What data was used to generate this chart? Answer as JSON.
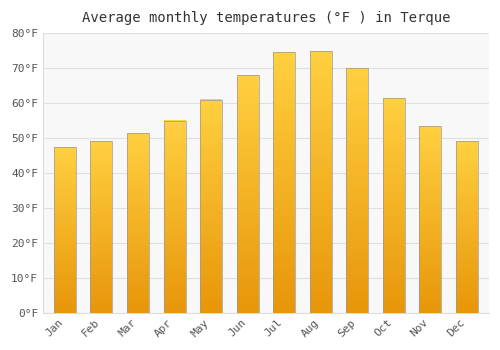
{
  "title": "Average monthly temperatures (°F ) in Terque",
  "months": [
    "Jan",
    "Feb",
    "Mar",
    "Apr",
    "May",
    "Jun",
    "Jul",
    "Aug",
    "Sep",
    "Oct",
    "Nov",
    "Dec"
  ],
  "values": [
    47.5,
    49.0,
    51.5,
    55.0,
    61.0,
    68.0,
    74.5,
    75.0,
    70.0,
    61.5,
    53.5,
    49.0
  ],
  "bar_color_bottom": "#E8960A",
  "bar_color_top": "#FFD040",
  "bar_edge_color": "#999999",
  "ylim": [
    0,
    80
  ],
  "yticks": [
    0,
    10,
    20,
    30,
    40,
    50,
    60,
    70,
    80
  ],
  "ytick_labels": [
    "0°F",
    "10°F",
    "20°F",
    "30°F",
    "40°F",
    "50°F",
    "60°F",
    "70°F",
    "80°F"
  ],
  "background_color": "#ffffff",
  "plot_bg_color": "#f8f8f8",
  "grid_color": "#e0e0e0",
  "title_fontsize": 10,
  "tick_fontsize": 8,
  "bar_width": 0.6
}
